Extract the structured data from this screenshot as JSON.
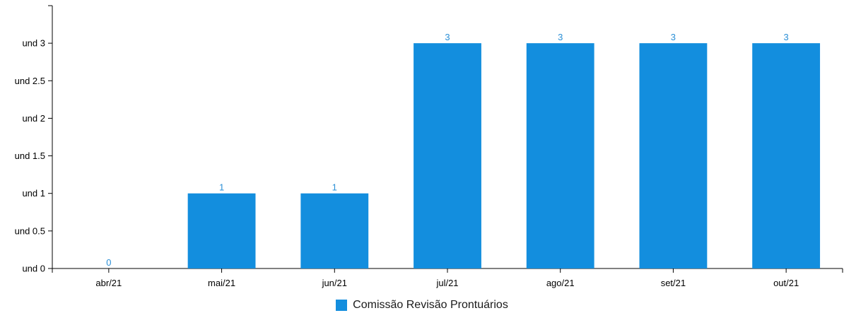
{
  "chart_data": {
    "type": "bar",
    "categories": [
      "abr/21",
      "mai/21",
      "jun/21",
      "jul/21",
      "ago/21",
      "set/21",
      "out/21"
    ],
    "series": [
      {
        "name": "Comissão Revisão Prontuários",
        "values": [
          0,
          1,
          1,
          3,
          3,
          3,
          3
        ],
        "color": "#138ede"
      }
    ],
    "value_labels": [
      "0",
      "1",
      "1",
      "3",
      "3",
      "3",
      "3"
    ],
    "y_ticks": [
      0,
      0.5,
      1,
      1.5,
      2,
      2.5,
      3
    ],
    "y_tick_labels": [
      "und 0",
      "und 0.5",
      "und 1",
      "und 1.5",
      "und 2",
      "und 2.5",
      "und 3"
    ],
    "ylim": [
      0,
      3.5
    ],
    "title": "",
    "xlabel": "",
    "ylabel": "",
    "grid": false,
    "legend_position": "bottom-center",
    "label_color": "#2a8fd6"
  }
}
